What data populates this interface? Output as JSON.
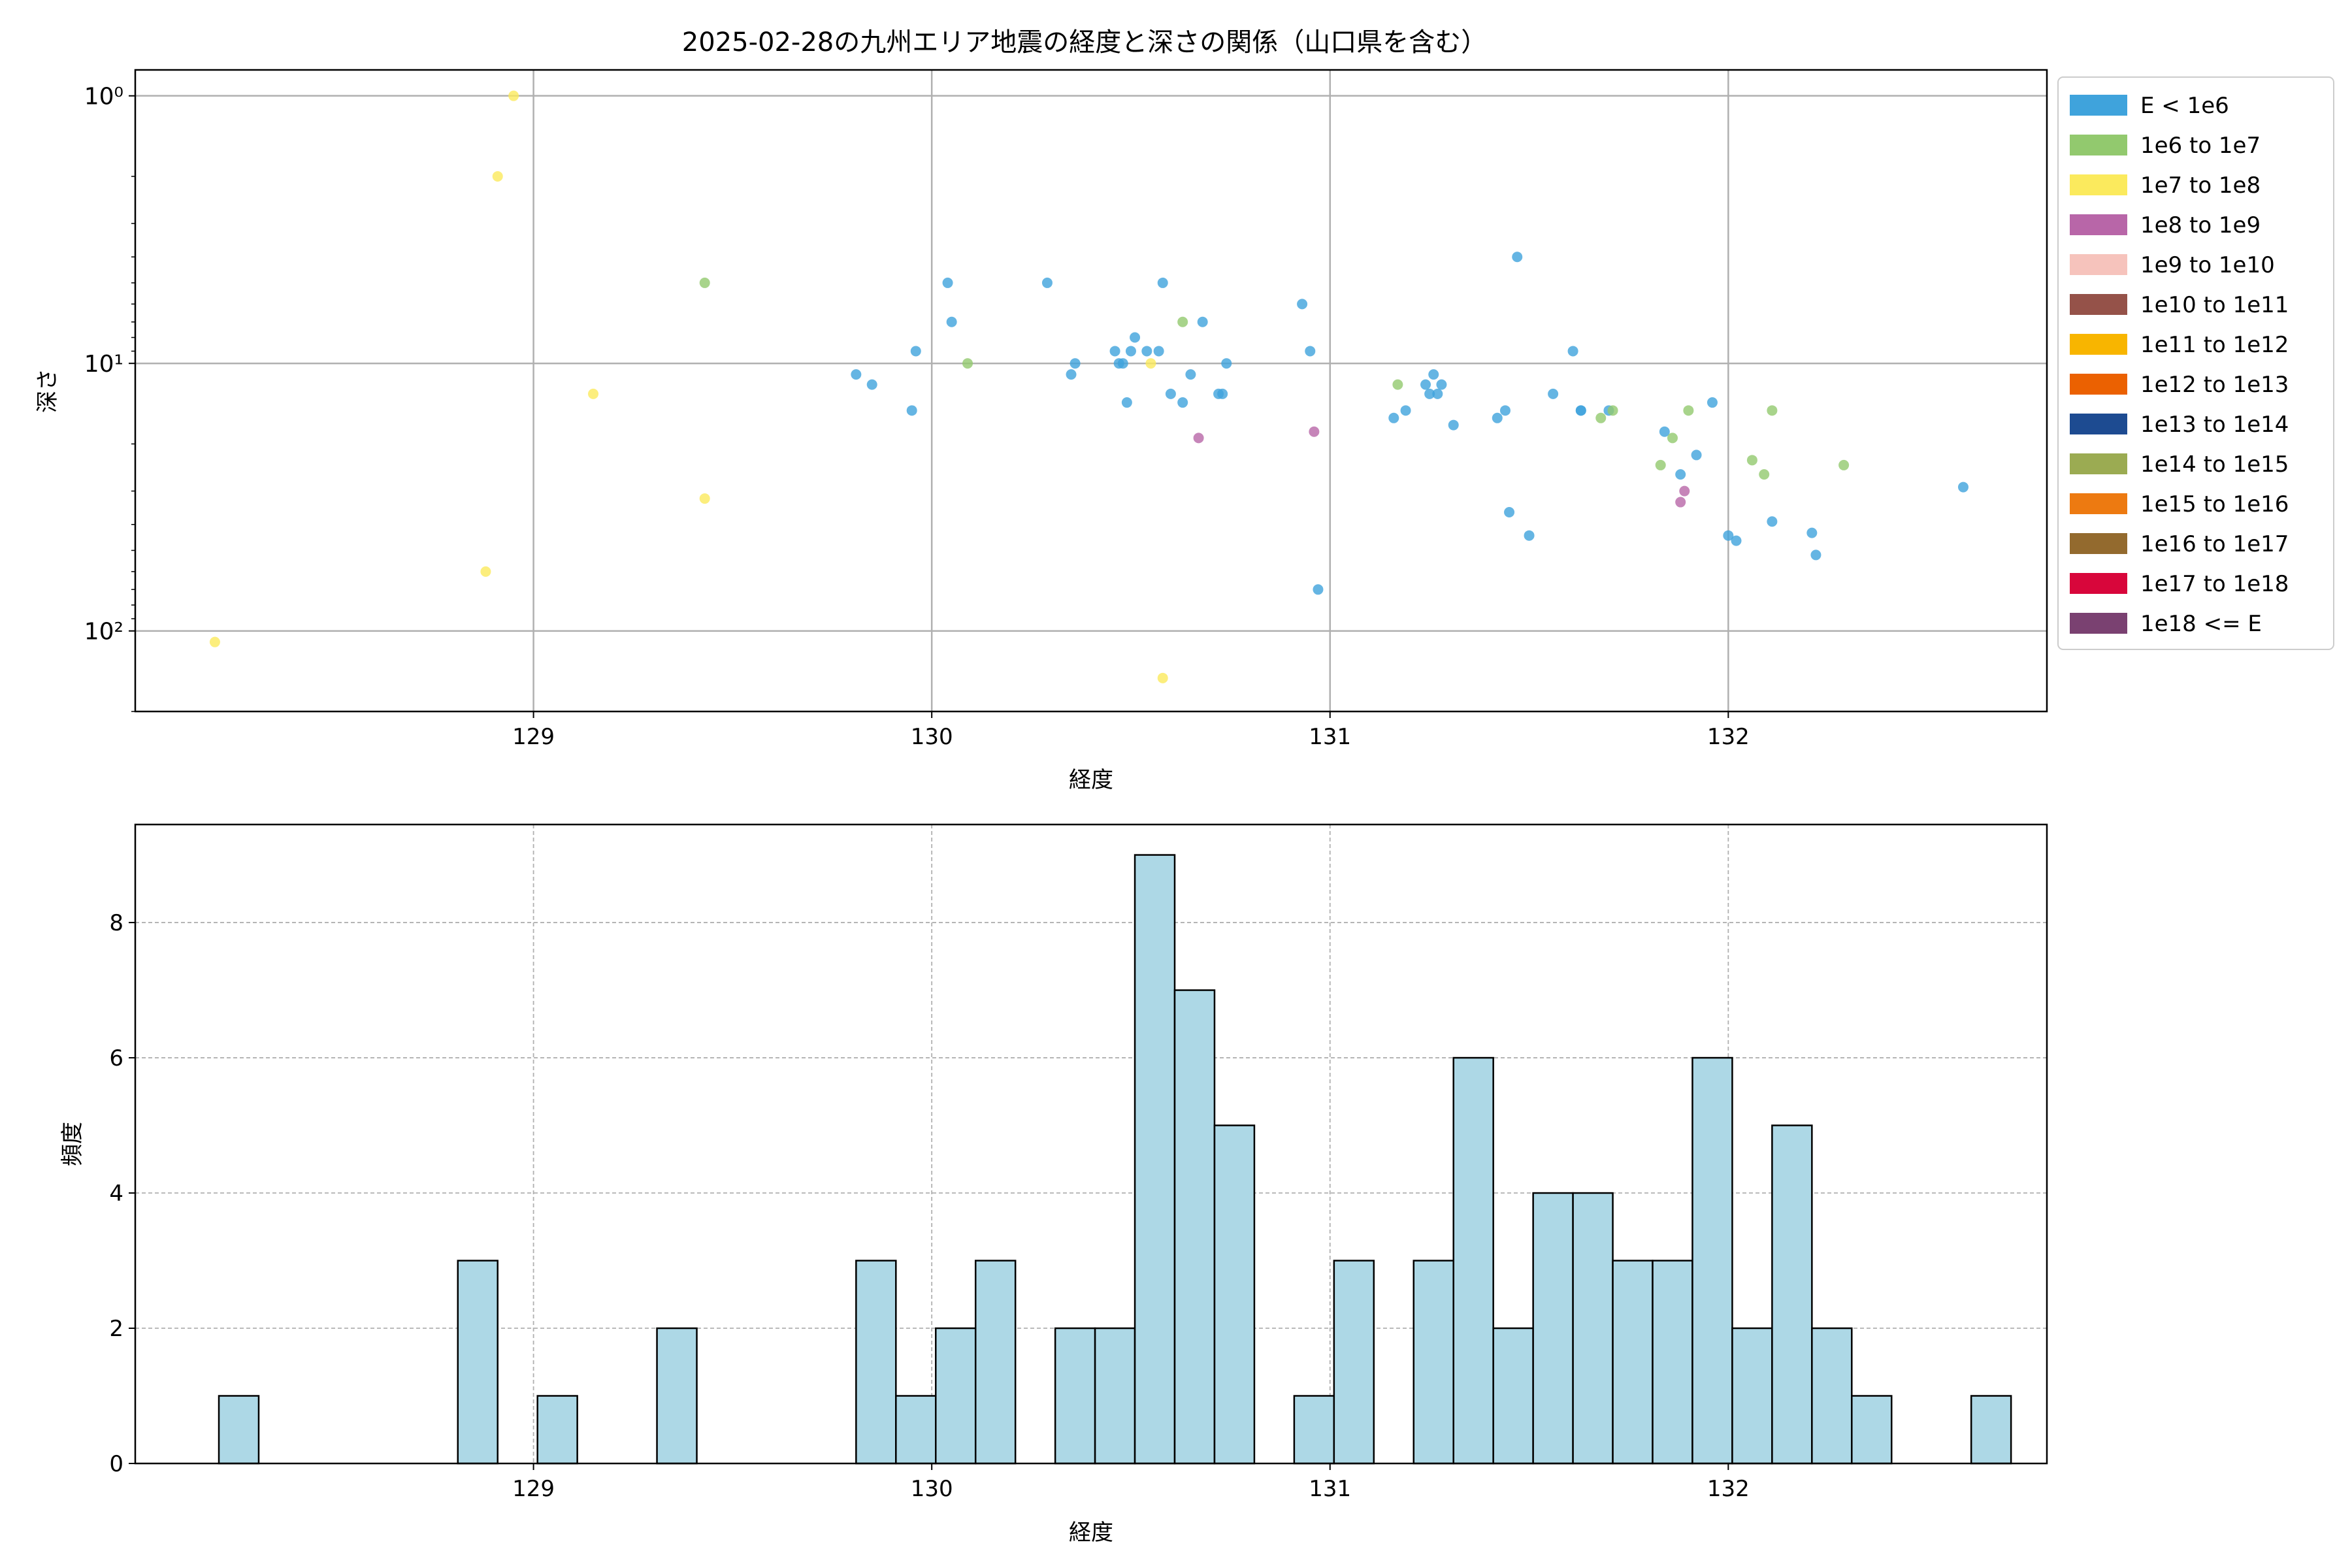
{
  "chart_data": [
    {
      "type": "scatter",
      "title": "2025-02-28の九州エリア地震の経度と深さの関係（山口県を含む）",
      "xlabel": "経度",
      "ylabel": "深さ",
      "x_ticks": [
        129,
        130,
        131,
        132
      ],
      "y_ticks": [
        {
          "value": 1,
          "label": "10⁰"
        },
        {
          "value": 10,
          "label": "10¹"
        },
        {
          "value": 100,
          "label": "10²"
        }
      ],
      "xlim": [
        128.0,
        132.8
      ],
      "ylim": [
        200,
        0.8
      ],
      "y_scale": "log",
      "y_inverted": true,
      "grid": true,
      "legend_placement": "outside-right",
      "legend": [
        {
          "label": "E < 1e6",
          "color": "#3fa3dc"
        },
        {
          "label": "1e6 to 1e7",
          "color": "#92c96e"
        },
        {
          "label": "1e7 to 1e8",
          "color": "#fbea5d"
        },
        {
          "label": "1e8 to 1e9",
          "color": "#b866a8"
        },
        {
          "label": "1e9 to 1e10",
          "color": "#f6c3bc"
        },
        {
          "label": "1e10 to 1e11",
          "color": "#955249"
        },
        {
          "label": "1e11 to 1e12",
          "color": "#f8b500"
        },
        {
          "label": "1e12 to 1e13",
          "color": "#eb6101"
        },
        {
          "label": "1e13 to 1e14",
          "color": "#1d4b91"
        },
        {
          "label": "1e14 to 1e15",
          "color": "#9bab52"
        },
        {
          "label": "1e15 to 1e16",
          "color": "#ed7a11"
        },
        {
          "label": "1e16 to 1e17",
          "color": "#936a2e"
        },
        {
          "label": "1e17 to 1e18",
          "color": "#d8063b"
        },
        {
          "label": "1e18 <= E",
          "color": "#7a4171"
        }
      ],
      "series": [
        {
          "class": 0,
          "color": "#3fa3dc",
          "points": [
            [
              129.81,
              11
            ],
            [
              129.85,
              12
            ],
            [
              129.95,
              15
            ],
            [
              129.96,
              9
            ],
            [
              130.04,
              5
            ],
            [
              130.05,
              7
            ],
            [
              130.29,
              5
            ],
            [
              130.35,
              11
            ],
            [
              130.36,
              10
            ],
            [
              130.46,
              9
            ],
            [
              130.47,
              10
            ],
            [
              130.48,
              10
            ],
            [
              130.49,
              14
            ],
            [
              130.5,
              9
            ],
            [
              130.51,
              8
            ],
            [
              130.54,
              9
            ],
            [
              130.57,
              9
            ],
            [
              130.58,
              5
            ],
            [
              130.6,
              13
            ],
            [
              130.63,
              14
            ],
            [
              130.65,
              11
            ],
            [
              130.68,
              7
            ],
            [
              130.72,
              13
            ],
            [
              130.73,
              13
            ],
            [
              130.74,
              10
            ],
            [
              130.93,
              6
            ],
            [
              130.95,
              9
            ],
            [
              130.97,
              70
            ],
            [
              131.16,
              16
            ],
            [
              131.19,
              15
            ],
            [
              131.24,
              12
            ],
            [
              131.25,
              13
            ],
            [
              131.26,
              11
            ],
            [
              131.27,
              13
            ],
            [
              131.28,
              12
            ],
            [
              131.31,
              17
            ],
            [
              131.42,
              16
            ],
            [
              131.44,
              15
            ],
            [
              131.45,
              36
            ],
            [
              131.47,
              4
            ],
            [
              131.5,
              44
            ],
            [
              131.56,
              13
            ],
            [
              131.61,
              9
            ],
            [
              131.63,
              15
            ],
            [
              131.63,
              15
            ],
            [
              131.7,
              15
            ],
            [
              131.84,
              18
            ],
            [
              131.88,
              26
            ],
            [
              131.92,
              22
            ],
            [
              131.96,
              14
            ],
            [
              132.0,
              44
            ],
            [
              132.02,
              46
            ],
            [
              132.11,
              39
            ],
            [
              132.21,
              43
            ],
            [
              132.22,
              52
            ],
            [
              132.59,
              29
            ]
          ]
        },
        {
          "class": 1,
          "color": "#92c96e",
          "points": [
            [
              129.43,
              5
            ],
            [
              130.09,
              10
            ],
            [
              130.63,
              7
            ],
            [
              131.17,
              12
            ],
            [
              131.68,
              16
            ],
            [
              131.71,
              15
            ],
            [
              131.83,
              24
            ],
            [
              131.86,
              19
            ],
            [
              131.9,
              15
            ],
            [
              132.06,
              23
            ],
            [
              132.09,
              26
            ],
            [
              132.11,
              15
            ],
            [
              132.29,
              24
            ]
          ]
        },
        {
          "class": 2,
          "color": "#fbea5d",
          "points": [
            [
              128.2,
              110
            ],
            [
              128.88,
              60
            ],
            [
              128.91,
              2
            ],
            [
              128.95,
              1
            ],
            [
              129.15,
              13
            ],
            [
              129.43,
              32
            ],
            [
              130.55,
              10
            ],
            [
              130.58,
              150
            ]
          ]
        },
        {
          "class": 3,
          "color": "#b866a8",
          "points": [
            [
              130.67,
              19
            ],
            [
              130.96,
              18
            ],
            [
              131.88,
              33
            ],
            [
              131.89,
              30
            ]
          ]
        }
      ]
    },
    {
      "type": "bar",
      "title": "",
      "xlabel": "経度",
      "ylabel": "頻度",
      "x_ticks": [
        129,
        130,
        131,
        132
      ],
      "y_ticks": [
        0,
        2,
        4,
        6,
        8
      ],
      "xlim": [
        128.0,
        132.8
      ],
      "ylim": [
        0,
        9.45
      ],
      "grid": true,
      "bar_color": "#add8e6",
      "bin_start": 128.21,
      "bin_width": 0.1,
      "counts": [
        1,
        0,
        0,
        0,
        0,
        0,
        3,
        0,
        1,
        0,
        0,
        2,
        0,
        0,
        0,
        0,
        3,
        1,
        2,
        3,
        0,
        2,
        2,
        9,
        7,
        5,
        0,
        1,
        3,
        0,
        3,
        6,
        2,
        4,
        4,
        3,
        3,
        6,
        2,
        5,
        2,
        1,
        0,
        0,
        1
      ]
    }
  ]
}
